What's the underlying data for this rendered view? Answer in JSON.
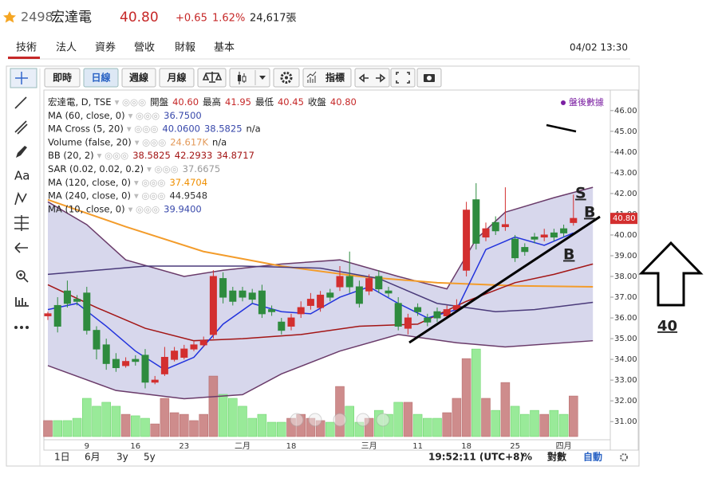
{
  "header": {
    "code": "2498",
    "name": "宏達電",
    "price": "40.80",
    "change": "+0.65",
    "percent": "1.62%",
    "volume": "24,617張"
  },
  "tabs": [
    "技術",
    "法人",
    "資券",
    "營收",
    "財報",
    "基本"
  ],
  "datetime": "04/02 13:30",
  "toolbar": [
    "即時",
    "日線",
    "週線",
    "月線",
    "指標"
  ],
  "sidebar_text": "Aa",
  "after_hours": "盤後數據",
  "legend": [
    {
      "label": "宏達電, D, TSE",
      "values": [
        "開盤",
        "40.60",
        "最高",
        "41.95",
        "最低",
        "40.45",
        "收盤",
        "40.80"
      ],
      "color": "#c62828"
    },
    {
      "label": "MA (60, close, 0)",
      "values": [
        "36.7500"
      ],
      "color": "#3949ab"
    },
    {
      "label": "MA Cross (5, 20)",
      "values": [
        "40.0600",
        "38.5825",
        "n/a"
      ],
      "color": "#3949ab"
    },
    {
      "label": "Volume (false, 20)",
      "values": [
        "24.617K",
        "n/a"
      ],
      "color": "#e39a5a"
    },
    {
      "label": "BB (20, 2)",
      "values": [
        "38.5825",
        "42.2933",
        "34.8717"
      ],
      "color": "#a31515"
    },
    {
      "label": "SAR (0.02, 0.02, 0.2)",
      "values": [
        "37.6675"
      ],
      "color": "#999999"
    },
    {
      "label": "MA (120, close, 0)",
      "values": [
        "37.4704"
      ],
      "color": "#ef8f00"
    },
    {
      "label": "MA (240, close, 0)",
      "values": [
        "44.9548"
      ],
      "color": "#333333"
    },
    {
      "label": "MA (10, close, 0)",
      "values": [
        "39.9400"
      ],
      "color": "#3949ab"
    }
  ],
  "footer": {
    "ranges": [
      "1日",
      "6月",
      "3y",
      "5y"
    ],
    "time": "19:52:11 (UTC+8)",
    "options": [
      "%",
      "對數",
      "自動"
    ]
  },
  "annotations": {
    "s": "S",
    "b_top": "B",
    "b_low": "B",
    "target": "40"
  },
  "chart_data": {
    "type": "candlestick",
    "categories": [
      null,
      null,
      null,
      null,
      "9",
      null,
      null,
      null,
      null,
      "16",
      null,
      null,
      null,
      null,
      "23",
      null,
      null,
      null,
      null,
      null,
      "二月",
      null,
      null,
      null,
      null,
      "18",
      null,
      null,
      null,
      null,
      null,
      null,
      null,
      "三月",
      null,
      null,
      null,
      null,
      "11",
      null,
      null,
      null,
      null,
      "18",
      null,
      null,
      null,
      null,
      "25",
      null,
      null,
      null,
      null,
      "四月",
      null
    ],
    "open": [
      36.1,
      36.6,
      37.3,
      36.9,
      37.2,
      35.4,
      34.7,
      34.0,
      33.7,
      34.0,
      34.2,
      32.9,
      33.3,
      34.0,
      34.1,
      34.5,
      34.7,
      35.2,
      37.9,
      37.3,
      37.3,
      37.2,
      37.3,
      36.4,
      35.8,
      35.6,
      36.2,
      36.6,
      36.5,
      37.2,
      37.5,
      38.0,
      37.5,
      37.3,
      38.0,
      37.3,
      36.7,
      35.5,
      36.5,
      36.0,
      36.3,
      36.1,
      36.4,
      38.3,
      41.7,
      39.9,
      40.6,
      40.4,
      39.8,
      39.4,
      39.9,
      39.9,
      40.1,
      40.3,
      40.6
    ],
    "high": [
      36.3,
      37.0,
      37.8,
      37.1,
      37.5,
      35.6,
      35.0,
      34.3,
      34.1,
      34.2,
      34.5,
      33.2,
      34.6,
      34.6,
      34.7,
      34.9,
      35.1,
      38.3,
      38.2,
      37.5,
      37.5,
      37.4,
      37.6,
      36.6,
      36.0,
      36.2,
      36.8,
      37.2,
      37.3,
      37.4,
      38.5,
      39.2,
      37.8,
      38.1,
      38.3,
      37.5,
      37.0,
      36.2,
      36.7,
      36.2,
      36.5,
      36.6,
      36.9,
      41.6,
      42.5,
      40.6,
      40.9,
      42.3,
      40.0,
      39.6,
      40.1,
      40.3,
      40.3,
      40.5,
      41.95
    ],
    "low": [
      35.9,
      35.3,
      36.5,
      36.6,
      35.2,
      34.0,
      33.5,
      33.4,
      33.6,
      33.7,
      32.6,
      32.8,
      33.2,
      33.9,
      34.0,
      34.4,
      34.6,
      35.0,
      36.7,
      36.6,
      36.8,
      36.7,
      36.0,
      36.1,
      35.2,
      35.4,
      36.0,
      36.4,
      36.3,
      36.8,
      37.3,
      37.2,
      36.5,
      37.1,
      37.2,
      37.0,
      35.4,
      35.2,
      36.1,
      35.6,
      35.8,
      36.0,
      36.3,
      38.0,
      39.3,
      39.7,
      40.0,
      40.2,
      38.7,
      39.0,
      39.6,
      39.7,
      39.7,
      39.9,
      40.45
    ],
    "close": [
      36.2,
      35.6,
      36.7,
      36.8,
      35.4,
      34.5,
      33.8,
      33.6,
      33.9,
      33.9,
      32.9,
      33.0,
      34.1,
      34.4,
      34.5,
      34.7,
      34.9,
      38.0,
      37.0,
      36.8,
      37.0,
      36.9,
      36.2,
      36.3,
      35.4,
      36.0,
      36.5,
      36.9,
      37.1,
      37.0,
      38.0,
      37.5,
      36.7,
      37.9,
      37.4,
      37.2,
      35.6,
      36.0,
      36.3,
      35.8,
      36.0,
      36.4,
      36.6,
      41.2,
      39.6,
      40.3,
      40.2,
      40.5,
      38.9,
      39.2,
      39.8,
      40.0,
      39.9,
      40.1,
      40.8
    ],
    "volume": [
      9700,
      9700,
      9700,
      11100,
      23200,
      18400,
      20800,
      18400,
      13500,
      12600,
      11100,
      7700,
      23200,
      14500,
      13500,
      9700,
      13500,
      36700,
      25600,
      23200,
      18400,
      11100,
      13500,
      8700,
      8700,
      11100,
      13500,
      11100,
      9700,
      8700,
      30400,
      18400,
      8700,
      11100,
      15900,
      13500,
      20800,
      20800,
      13500,
      11100,
      11100,
      14500,
      23200,
      47300,
      53100,
      23200,
      15900,
      32800,
      18400,
      13500,
      15900,
      13500,
      15900,
      13500,
      24617
    ],
    "up_color": "#d32f2f",
    "down_color": "#2e8b3e",
    "volume_up_color": "#c98080",
    "volume_down_color": "#8ee88e",
    "series": [
      {
        "name": "BB upper",
        "color": "#6a3b6a",
        "x": [
          0,
          4,
          8,
          14,
          18,
          24,
          30,
          36,
          41,
          44,
          47,
          52,
          56
        ],
        "values": [
          41.6,
          40.5,
          38.8,
          38.0,
          38.3,
          38.6,
          38.8,
          38.0,
          37.4,
          39.8,
          41.1,
          41.8,
          42.3
        ]
      },
      {
        "name": "BB lower",
        "color": "#6a3b6a",
        "x": [
          0,
          7,
          14,
          20,
          24,
          30,
          36,
          42,
          47,
          56
        ],
        "values": [
          33.7,
          32.5,
          32.1,
          32.3,
          33.3,
          34.4,
          35.2,
          34.8,
          34.6,
          34.9
        ]
      },
      {
        "name": "MA 120",
        "color": "#f39c2b",
        "x": [
          0,
          8,
          16,
          24,
          32,
          40,
          48,
          56
        ],
        "values": [
          41.7,
          40.4,
          39.2,
          38.5,
          38.0,
          37.7,
          37.55,
          37.5
        ]
      },
      {
        "name": "MA 60",
        "color": "#4a3a7a",
        "x": [
          0,
          10,
          20,
          28,
          34,
          40,
          46,
          50,
          56
        ],
        "values": [
          38.1,
          38.5,
          38.5,
          38.4,
          37.9,
          36.7,
          36.3,
          36.4,
          36.75
        ]
      },
      {
        "name": "MA 20",
        "color": "#a31515",
        "x": [
          0,
          5,
          10,
          15,
          20,
          26,
          32,
          38,
          43,
          48,
          52,
          56
        ],
        "values": [
          37.6,
          36.5,
          35.5,
          34.9,
          35.0,
          35.2,
          35.6,
          35.7,
          36.8,
          37.7,
          38.1,
          38.6
        ]
      },
      {
        "name": "MA 5",
        "color": "#2233dd",
        "x": [
          0,
          3,
          6,
          9,
          12,
          15,
          18,
          21,
          24,
          27,
          30,
          33,
          36,
          39,
          42,
          45,
          48,
          51,
          54
        ],
        "values": [
          36.4,
          36.7,
          35.6,
          34.4,
          33.5,
          34.1,
          35.7,
          36.7,
          36.3,
          36.2,
          37.0,
          37.5,
          36.7,
          36.0,
          36.4,
          39.3,
          39.9,
          39.5,
          40.1
        ]
      }
    ],
    "ylim": [
      30.2,
      46.8
    ],
    "yticks": [
      {
        "value": 31,
        "label": "31.00"
      },
      {
        "value": 32,
        "label": "32.00"
      },
      {
        "value": 33,
        "label": "33.00"
      },
      {
        "value": 34,
        "label": "34.00"
      },
      {
        "value": 35,
        "label": "35.00"
      },
      {
        "value": 36,
        "label": "36.00"
      },
      {
        "value": 37,
        "label": "37.00"
      },
      {
        "value": 38,
        "label": "38.00"
      },
      {
        "value": 39,
        "label": "39.00"
      },
      {
        "value": 40,
        "label": "40.00"
      },
      {
        "value": 41,
        "label": "41.00"
      },
      {
        "value": 42,
        "label": "42.00"
      },
      {
        "value": 43,
        "label": "43.00"
      },
      {
        "value": 44,
        "label": "44.00"
      },
      {
        "value": 45,
        "label": "45.00"
      },
      {
        "value": 46,
        "label": "46.00"
      }
    ],
    "last_price": {
      "value": 40.8,
      "label": "40.80"
    }
  }
}
